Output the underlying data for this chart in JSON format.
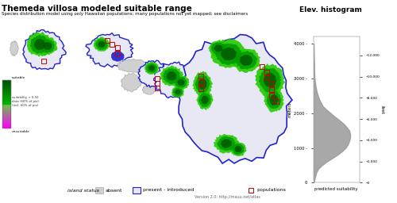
{
  "title": "Themeda villosa modeled suitable range",
  "subtitle": "Species distribution model using only Hawaiian populations; many populations not yet mapped; see disclaimers",
  "elev_title": "Elev. histogram",
  "bg_color": "#ffffff",
  "map_bg": "#ffffff",
  "absent_fill": "#d0d0d0",
  "absent_edge": "#aaaaaa",
  "present_fill": "#e8e8f5",
  "present_edge": "#2222cc",
  "green_bright": "#22cc00",
  "green_dark": "#005500",
  "green_mid": "#009900",
  "blue_urban": "#3333cc",
  "pop_color": "#cc0000",
  "version_text": "Version 2.0; http://mauu.net/atlas",
  "elev_ylabel_left": "meters",
  "elev_ylabel_right": "feet",
  "elev_xlabel": "predicted suitability",
  "colorbar_top": "suitable",
  "colorbar_mid1": "suitability > 0.50",
  "colorbar_mid2": "data (60% of pix)",
  "colorbar_mid3": "(incl. 60% of pix)",
  "colorbar_bot": "unsuitable"
}
